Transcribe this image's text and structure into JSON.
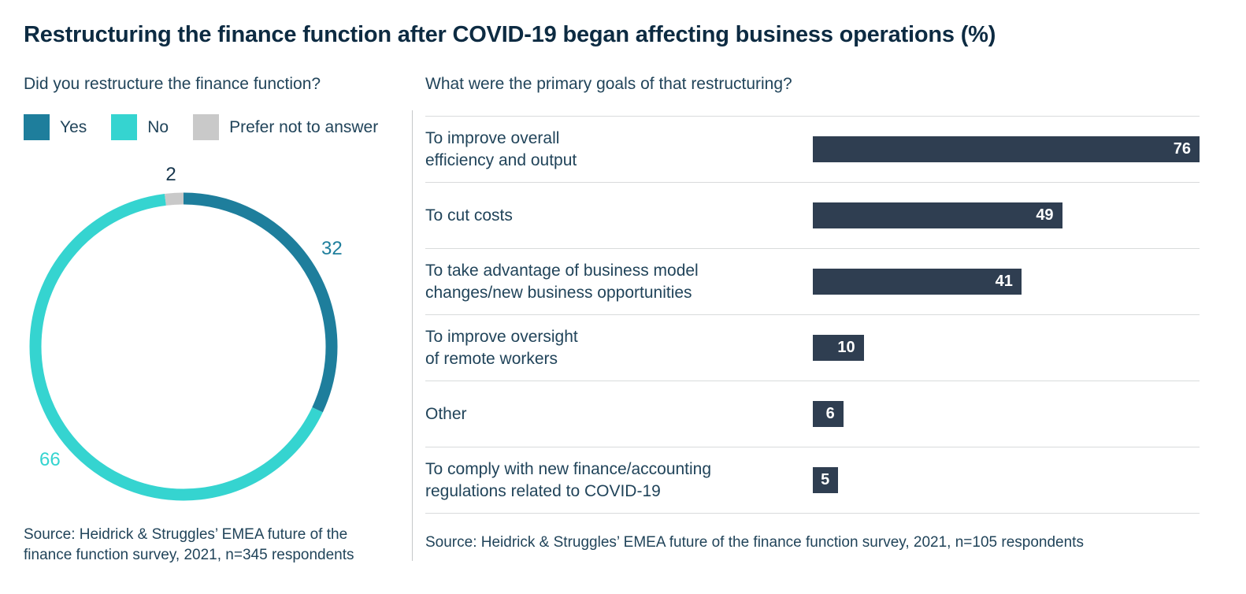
{
  "page": {
    "title": "Restructuring the finance function after COVID-19 began affecting business operations (%)"
  },
  "left_panel": {
    "question": "Did you restructure the finance function?",
    "legend": [
      {
        "label": "Yes",
        "color": "#1e7e9c"
      },
      {
        "label": "No",
        "color": "#35d4d0"
      },
      {
        "label": "Prefer not to answer",
        "color": "#c9c9c9"
      }
    ],
    "source_lines": [
      "Source: Heidrick & Struggles’ EMEA future of the",
      "finance function survey, 2021, n=345 respondents"
    ]
  },
  "right_panel": {
    "question": "What were the primary goals of that restructuring?",
    "source": "Source: Heidrick & Struggles’ EMEA future of the finance function survey, 2021, n=105 respondents"
  },
  "colors": {
    "title_text": "#0d2b42",
    "body_text": "#21445a",
    "bar_fill": "#2f3e51",
    "divider": "#d9dbdc",
    "panel_divider": "#c6c8c9"
  },
  "chart_data": [
    {
      "type": "pie",
      "donut": true,
      "title": "Did you restructure the finance function?",
      "labels": [
        "Yes",
        "No",
        "Prefer not to answer"
      ],
      "values": [
        32,
        66,
        2
      ],
      "colors": [
        "#1e7e9c",
        "#35d4d0",
        "#c9c9c9"
      ],
      "value_label_colors": [
        "#1e7e9c",
        "#35d4d0",
        "#17364d"
      ],
      "start_angle_deg": 0,
      "direction": "clockwise",
      "legend_position": "top"
    },
    {
      "type": "bar",
      "orientation": "horizontal",
      "title": "What were the primary goals of that restructuring?",
      "categories": [
        [
          "To improve overall",
          "efficiency and output"
        ],
        [
          "To cut costs"
        ],
        [
          "To take advantage of business model",
          "changes/new business opportunities"
        ],
        [
          "To improve oversight",
          "of remote workers"
        ],
        [
          "Other"
        ],
        [
          "To comply with new finance/accounting",
          "regulations related to COVID-19"
        ]
      ],
      "values": [
        76,
        49,
        41,
        10,
        6,
        5
      ],
      "xlim": [
        0,
        76
      ],
      "bar_color": "#2f3e51",
      "value_label_color": "#ffffff",
      "grid": false,
      "value_labels": "inside-right"
    }
  ]
}
